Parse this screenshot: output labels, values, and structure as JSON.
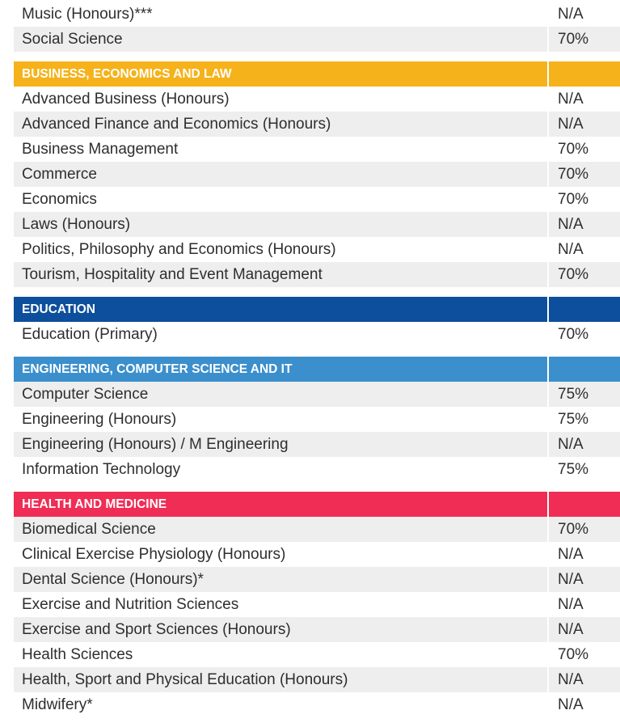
{
  "colors": {
    "business": "#f5b21b",
    "education": "#0d4f9c",
    "engineering": "#3b8fcc",
    "health": "#ef2d55",
    "row_shade": "#eeeeee"
  },
  "top_rows": [
    {
      "name": "Music (Honours)***",
      "value": "N/A"
    },
    {
      "name": "Social Science",
      "value": "70%"
    }
  ],
  "sections": [
    {
      "title": "BUSINESS, ECONOMICS AND LAW",
      "rows": [
        {
          "name": "Advanced Business (Honours)",
          "value": "N/A"
        },
        {
          "name": "Advanced Finance and Economics (Honours)",
          "value": "N/A"
        },
        {
          "name": "Business Management",
          "value": "70%"
        },
        {
          "name": "Commerce",
          "value": "70%"
        },
        {
          "name": "Economics",
          "value": "70%"
        },
        {
          "name": "Laws (Honours)",
          "value": "N/A"
        },
        {
          "name": "Politics, Philosophy and Economics (Honours)",
          "value": "N/A"
        },
        {
          "name": "Tourism, Hospitality and Event Management",
          "value": "70%"
        }
      ]
    },
    {
      "title": "EDUCATION",
      "rows": [
        {
          "name": "Education (Primary)",
          "value": "70%"
        }
      ]
    },
    {
      "title": "ENGINEERING, COMPUTER SCIENCE AND IT",
      "rows": [
        {
          "name": "Computer Science",
          "value": "75%"
        },
        {
          "name": "Engineering (Honours)",
          "value": "75%"
        },
        {
          "name": "Engineering (Honours) / M Engineering",
          "value": "N/A"
        },
        {
          "name": "Information Technology",
          "value": "75%"
        }
      ]
    },
    {
      "title": "HEALTH AND MEDICINE",
      "rows": [
        {
          "name": "Biomedical Science",
          "value": "70%"
        },
        {
          "name": "Clinical Exercise Physiology (Honours)",
          "value": "N/A"
        },
        {
          "name": "Dental Science (Honours)*",
          "value": "N/A"
        },
        {
          "name": "Exercise and Nutrition Sciences",
          "value": "N/A"
        },
        {
          "name": "Exercise and Sport Sciences (Honours)",
          "value": "N/A"
        },
        {
          "name": "Health Sciences",
          "value": "70%"
        },
        {
          "name": "Health, Sport and Physical Education (Honours)",
          "value": "N/A"
        },
        {
          "name": "Midwifery*",
          "value": "N/A"
        }
      ]
    }
  ]
}
